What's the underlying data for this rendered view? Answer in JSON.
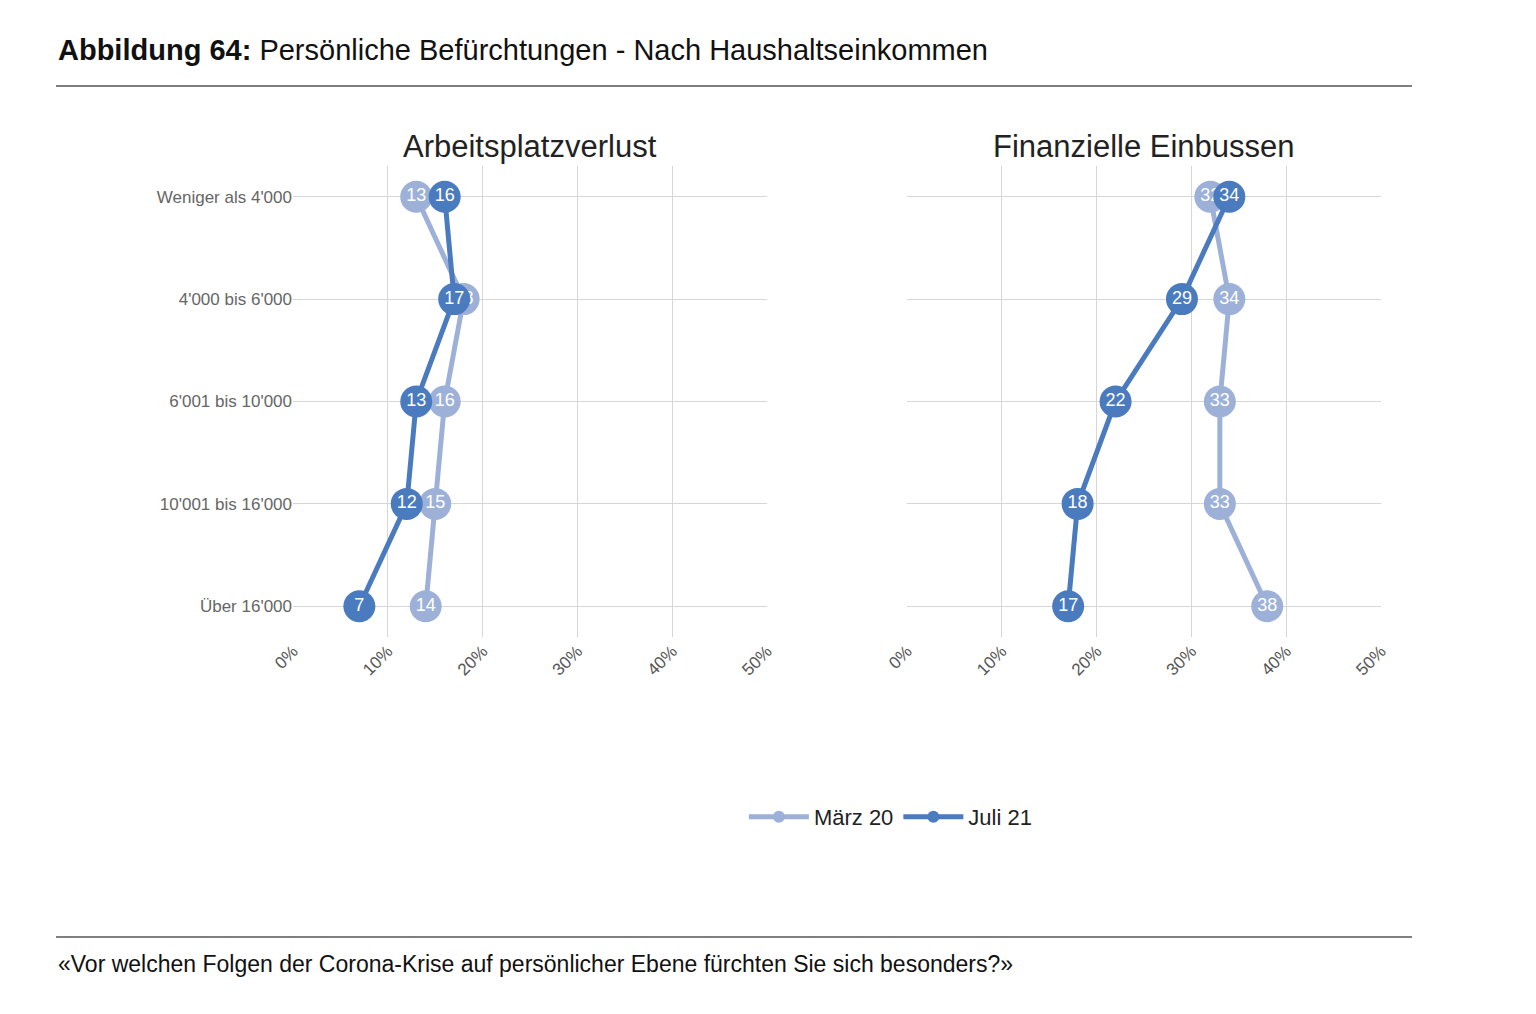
{
  "title": "Abbildung 64: Persönliche Befürchtungen - Nach Haushaltseinkommen",
  "note": "«Vor welchen Folgen der Corona-Krise auf persönlicher Ebene fürchten Sie sich besonders?»",
  "chart_data": [
    {
      "type": "line",
      "title": "Arbeitsplatzverlust",
      "orientation": "horizontal",
      "categories": [
        "Weniger als 4'000",
        "4'000 bis 6'000",
        "6'001 bis 10'000",
        "10'001 bis 16'000",
        "Über 16'000"
      ],
      "series": [
        {
          "name": "März 20",
          "color": "#9db1d8",
          "values": [
            13,
            18,
            16,
            15,
            14
          ]
        },
        {
          "name": "Juli 21",
          "color": "#4a7bbf",
          "values": [
            16,
            17,
            13,
            12,
            7
          ]
        }
      ],
      "xlim": [
        0,
        50
      ],
      "xticks": [
        {
          "value": 0,
          "label": "0%"
        },
        {
          "value": 10,
          "label": "10%"
        },
        {
          "value": 20,
          "label": "20%"
        },
        {
          "value": 30,
          "label": "30%"
        },
        {
          "value": 40,
          "label": "40%"
        },
        {
          "value": 50,
          "label": "50%"
        }
      ],
      "grid": true,
      "data_labels": true,
      "marker": "circle",
      "legend": "bottom"
    },
    {
      "type": "line",
      "title": "Finanzielle Einbussen",
      "orientation": "horizontal",
      "categories": [
        "Weniger als 4'000",
        "4'000 bis 6'000",
        "6'001 bis 10'000",
        "10'001 bis 16'000",
        "Über 16'000"
      ],
      "series": [
        {
          "name": "März 20",
          "color": "#9db1d8",
          "values": [
            32,
            34,
            33,
            33,
            38
          ]
        },
        {
          "name": "Juli 21",
          "color": "#4a7bbf",
          "values": [
            34,
            29,
            22,
            18,
            17
          ]
        }
      ],
      "xlim": [
        0,
        50
      ],
      "xticks": [
        {
          "value": 0,
          "label": "0%"
        },
        {
          "value": 10,
          "label": "10%"
        },
        {
          "value": 20,
          "label": "20%"
        },
        {
          "value": 30,
          "label": "30%"
        },
        {
          "value": 40,
          "label": "40%"
        },
        {
          "value": 50,
          "label": "50%"
        }
      ],
      "grid": true,
      "data_labels": true,
      "marker": "circle",
      "tick_labels": "x"
    }
  ]
}
